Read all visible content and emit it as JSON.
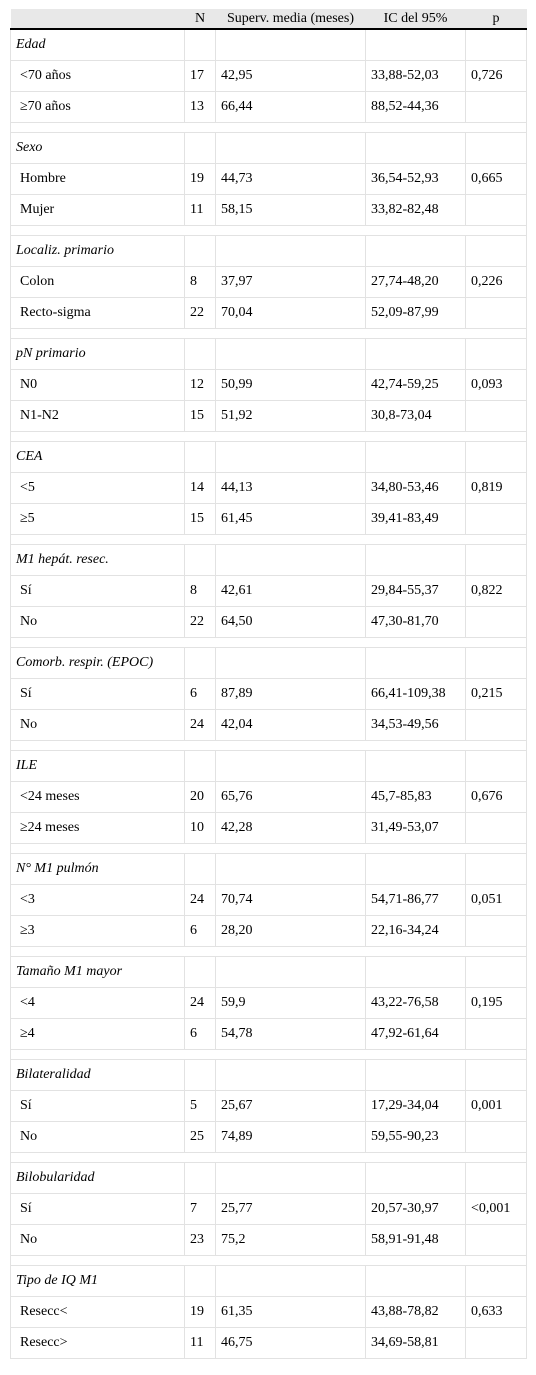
{
  "table": {
    "headers": {
      "label": "",
      "n": "N",
      "median": "Superv. media (meses)",
      "ci": "IC del 95%",
      "p": "p"
    },
    "groups": [
      {
        "title": "Edad",
        "rows": [
          {
            "label": "<70 años",
            "n": "17",
            "median": "42,95",
            "ci": "33,88-52,03",
            "p": "0,726"
          },
          {
            "label": "≥70 años",
            "n": "13",
            "median": "66,44",
            "ci": "88,52-44,36",
            "p": ""
          }
        ]
      },
      {
        "title": "Sexo",
        "rows": [
          {
            "label": "Hombre",
            "n": "19",
            "median": "44,73",
            "ci": "36,54-52,93",
            "p": "0,665"
          },
          {
            "label": "Mujer",
            "n": "11",
            "median": "58,15",
            "ci": "33,82-82,48",
            "p": ""
          }
        ]
      },
      {
        "title": "Localiz. primario",
        "rows": [
          {
            "label": "Colon",
            "n": "8",
            "median": "37,97",
            "ci": "27,74-48,20",
            "p": "0,226"
          },
          {
            "label": "Recto-sigma",
            "n": "22",
            "median": "70,04",
            "ci": "52,09-87,99",
            "p": ""
          }
        ]
      },
      {
        "title": "pN primario",
        "rows": [
          {
            "label": "N0",
            "n": "12",
            "median": "50,99",
            "ci": "42,74-59,25",
            "p": "0,093"
          },
          {
            "label": "N1-N2",
            "n": "15",
            "median": "51,92",
            "ci": "30,8-73,04",
            "p": ""
          }
        ]
      },
      {
        "title": "CEA",
        "rows": [
          {
            "label": "<5",
            "n": "14",
            "median": "44,13",
            "ci": "34,80-53,46",
            "p": "0,819"
          },
          {
            "label": "≥5",
            "n": "15",
            "median": "61,45",
            "ci": "39,41-83,49",
            "p": ""
          }
        ]
      },
      {
        "title": "M1 hepát. resec.",
        "rows": [
          {
            "label": "Sí",
            "n": "8",
            "median": "42,61",
            "ci": "29,84-55,37",
            "p": "0,822"
          },
          {
            "label": "No",
            "n": "22",
            "median": "64,50",
            "ci": "47,30-81,70",
            "p": ""
          }
        ]
      },
      {
        "title": "Comorb. respir. (EPOC)",
        "rows": [
          {
            "label": "Sí",
            "n": "6",
            "median": "87,89",
            "ci": "66,41-109,38",
            "p": "0,215"
          },
          {
            "label": "No",
            "n": "24",
            "median": "42,04",
            "ci": "34,53-49,56",
            "p": ""
          }
        ]
      },
      {
        "title": "ILE",
        "rows": [
          {
            "label": "<24 meses",
            "n": "20",
            "median": "65,76",
            "ci": "45,7-85,83",
            "p": "0,676"
          },
          {
            "label": "≥24 meses",
            "n": "10",
            "median": "42,28",
            "ci": "31,49-53,07",
            "p": ""
          }
        ]
      },
      {
        "title": "N° M1 pulmón",
        "rows": [
          {
            "label": "<3",
            "n": "24",
            "median": "70,74",
            "ci": "54,71-86,77",
            "p": "0,051"
          },
          {
            "label": "≥3",
            "n": "6",
            "median": "28,20",
            "ci": "22,16-34,24",
            "p": ""
          }
        ]
      },
      {
        "title": "Tamaño M1 mayor",
        "rows": [
          {
            "label": "<4",
            "n": "24",
            "median": "59,9",
            "ci": "43,22-76,58",
            "p": "0,195"
          },
          {
            "label": "≥4",
            "n": "6",
            "median": "54,78",
            "ci": "47,92-61,64",
            "p": ""
          }
        ]
      },
      {
        "title": "Bilateralidad",
        "rows": [
          {
            "label": "Sí",
            "n": "5",
            "median": "25,67",
            "ci": "17,29-34,04",
            "p": "0,001"
          },
          {
            "label": "No",
            "n": "25",
            "median": "74,89",
            "ci": "59,55-90,23",
            "p": ""
          }
        ]
      },
      {
        "title": "Bilobularidad",
        "rows": [
          {
            "label": "Sí",
            "n": "7",
            "median": "25,77",
            "ci": "20,57-30,97",
            "p": "<0,001"
          },
          {
            "label": "No",
            "n": "23",
            "median": "75,2",
            "ci": "58,91-91,48",
            "p": ""
          }
        ]
      },
      {
        "title": "Tipo de IQ M1",
        "rows": [
          {
            "label": "Resecc<",
            "n": "19",
            "median": "61,35",
            "ci": "43,88-78,82",
            "p": "0,633"
          },
          {
            "label": "Resecc>",
            "n": "11",
            "median": "46,75",
            "ci": "34,69-58,81",
            "p": ""
          }
        ]
      }
    ]
  }
}
